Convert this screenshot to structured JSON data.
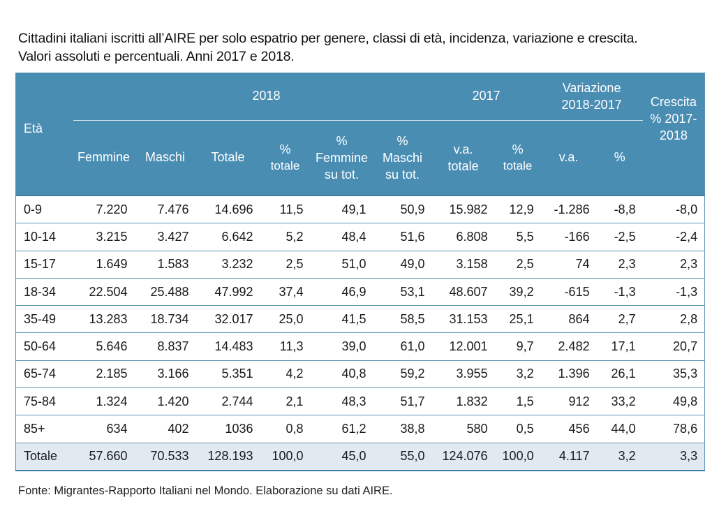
{
  "title": {
    "line1": "Cittadini italiani iscritti all’AIRE per solo espatrio per genere, classi di età, incidenza, variazione e crescita.",
    "line2": "Valori assoluti e percentuali. Anni 2017 e 2018."
  },
  "header": {
    "eta": "Età",
    "group_2018": "2018",
    "group_2017": "2017",
    "group_variazione": [
      "Variazione",
      "2018-2017"
    ],
    "crescita": [
      "Crescita",
      "% 2017-",
      "2018"
    ],
    "femmine": "Femmine",
    "maschi": "Maschi",
    "totale": "Totale",
    "pct_totale_2018": [
      "%",
      "totale"
    ],
    "pct_femmine": [
      "%",
      "Femmine",
      "su tot."
    ],
    "pct_maschi": [
      "%",
      "Maschi",
      "su tot."
    ],
    "va_totale": [
      "v.a.",
      "totale"
    ],
    "pct_totale_2017": [
      "%",
      "totale"
    ],
    "var_va": "v.a.",
    "var_pct": "%"
  },
  "rows": [
    {
      "eta": "0-9",
      "femmine": "7.220",
      "maschi": "7.476",
      "totale": "14.696",
      "pct_tot": "11,5",
      "pct_f": "49,1",
      "pct_m": "50,9",
      "va_2017": "15.982",
      "pct_2017": "12,9",
      "var_va": "-1.286",
      "var_pct": "-8,8",
      "crescita": "-8,0"
    },
    {
      "eta": "10-14",
      "femmine": "3.215",
      "maschi": "3.427",
      "totale": "6.642",
      "pct_tot": "5,2",
      "pct_f": "48,4",
      "pct_m": "51,6",
      "va_2017": "6.808",
      "pct_2017": "5,5",
      "var_va": "-166",
      "var_pct": "-2,5",
      "crescita": "-2,4"
    },
    {
      "eta": "15-17",
      "femmine": "1.649",
      "maschi": "1.583",
      "totale": "3.232",
      "pct_tot": "2,5",
      "pct_f": "51,0",
      "pct_m": "49,0",
      "va_2017": "3.158",
      "pct_2017": "2,5",
      "var_va": "74",
      "var_pct": "2,3",
      "crescita": "2,3"
    },
    {
      "eta": "18-34",
      "femmine": "22.504",
      "maschi": "25.488",
      "totale": "47.992",
      "pct_tot": "37,4",
      "pct_f": "46,9",
      "pct_m": "53,1",
      "va_2017": "48.607",
      "pct_2017": "39,2",
      "var_va": "-615",
      "var_pct": "-1,3",
      "crescita": "-1,3"
    },
    {
      "eta": "35-49",
      "femmine": "13.283",
      "maschi": "18.734",
      "totale": "32.017",
      "pct_tot": "25,0",
      "pct_f": "41,5",
      "pct_m": "58,5",
      "va_2017": "31.153",
      "pct_2017": "25,1",
      "var_va": "864",
      "var_pct": "2,7",
      "crescita": "2,8"
    },
    {
      "eta": "50-64",
      "femmine": "5.646",
      "maschi": "8.837",
      "totale": "14.483",
      "pct_tot": "11,3",
      "pct_f": "39,0",
      "pct_m": "61,0",
      "va_2017": "12.001",
      "pct_2017": "9,7",
      "var_va": "2.482",
      "var_pct": "17,1",
      "crescita": "20,7"
    },
    {
      "eta": "65-74",
      "femmine": "2.185",
      "maschi": "3.166",
      "totale": "5.351",
      "pct_tot": "4,2",
      "pct_f": "40,8",
      "pct_m": "59,2",
      "va_2017": "3.955",
      "pct_2017": "3,2",
      "var_va": "1.396",
      "var_pct": "26,1",
      "crescita": "35,3"
    },
    {
      "eta": "75-84",
      "femmine": "1.324",
      "maschi": "1.420",
      "totale": "2.744",
      "pct_tot": "2,1",
      "pct_f": "48,3",
      "pct_m": "51,7",
      "va_2017": "1.832",
      "pct_2017": "1,5",
      "var_va": "912",
      "var_pct": "33,2",
      "crescita": "49,8"
    },
    {
      "eta": "85+",
      "femmine": "634",
      "maschi": "402",
      "totale": "1036",
      "pct_tot": "0,8",
      "pct_f": "61,2",
      "pct_m": "38,8",
      "va_2017": "580",
      "pct_2017": "0,5",
      "var_va": "456",
      "var_pct": "44,0",
      "crescita": "78,6"
    }
  ],
  "total_row": {
    "eta": "Totale",
    "femmine": "57.660",
    "maschi": "70.533",
    "totale": "128.193",
    "pct_tot": "100,0",
    "pct_f": "45,0",
    "pct_m": "55,0",
    "va_2017": "124.076",
    "pct_2017": "100,0",
    "var_va": "4.117",
    "var_pct": "3,2",
    "crescita": "3,3"
  },
  "source": "Fonte: Migrantes-Rapporto Italiani nel Mondo. Elaborazione su dati AIRE.",
  "colors": {
    "header_bg": "#4a8db3",
    "total_row_bg": "#e1e9f1",
    "rule": "#5a92b4"
  }
}
